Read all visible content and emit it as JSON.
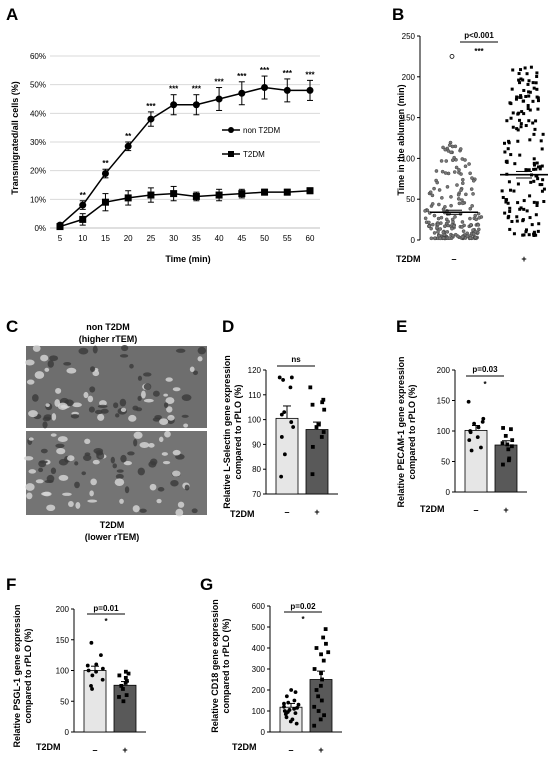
{
  "panels": {
    "a": {
      "letter": "A",
      "ylabel": "Transmigrated/all cells (%)",
      "xlabel": "Time (min)",
      "legend": [
        "non T2DM",
        "T2DM"
      ]
    },
    "b": {
      "letter": "B",
      "ylabel": "Time in the ablumen (min)",
      "pvalue": "p<0.001",
      "stars": "***",
      "group_label": "T2DM"
    },
    "c": {
      "letter": "C",
      "top_title_1": "non T2DM",
      "top_title_2": "(higher rTEM)",
      "bottom_title_1": "T2DM",
      "bottom_title_2": "(lower rTEM)"
    },
    "d": {
      "letter": "D",
      "ylabel_1": "Relative L-Selectin gene expression",
      "ylabel_2": "compared to rPLO (%)",
      "sig": "ns",
      "group_label": "T2DM"
    },
    "e": {
      "letter": "E",
      "ylabel_1": "Relative PECAM-1 gene expression",
      "ylabel_2": "compared to rPLO (%)",
      "pvalue": "p=0.03",
      "stars": "*",
      "group_label": "T2DM"
    },
    "f": {
      "letter": "F",
      "ylabel_1": "Relative PSGL-1 gene expression",
      "ylabel_2": "compared to rPLO (%)",
      "pvalue": "p=0.01",
      "stars": "*",
      "group_label": "T2DM"
    },
    "g": {
      "letter": "G",
      "ylabel_1": "Relative CD18 gene expression",
      "ylabel_2": "compared to rPLO (%)",
      "pvalue": "p=0.02",
      "stars": "*",
      "group_label": "T2DM"
    }
  },
  "chart_data": [
    {
      "panel": "A",
      "type": "line",
      "xlabel": "Time (min)",
      "ylabel": "Transmigrated/all cells (%)",
      "x": [
        5,
        10,
        15,
        20,
        25,
        30,
        35,
        40,
        45,
        50,
        55,
        60
      ],
      "xticks": [
        "5",
        "10",
        "15",
        "20",
        "25",
        "30",
        "35",
        "40",
        "45",
        "50",
        "55",
        "60"
      ],
      "yticks": [
        "0%",
        "10%",
        "20%",
        "30%",
        "40%",
        "50%",
        "60%"
      ],
      "ylim": [
        0,
        60
      ],
      "series": [
        {
          "name": "non T2DM",
          "marker": "circle",
          "values": [
            1,
            8,
            19,
            28.5,
            38,
            43,
            43,
            45,
            47,
            49,
            48,
            48
          ],
          "errors": [
            0.5,
            1.5,
            1.5,
            1.5,
            2.5,
            3.5,
            3.5,
            4,
            4,
            4,
            4,
            3.5
          ],
          "annotations": [
            "",
            "**",
            "**",
            "**",
            "***",
            "***",
            "***",
            "***",
            "***",
            "***",
            "***",
            "***"
          ]
        },
        {
          "name": "T2DM",
          "marker": "square",
          "values": [
            0.5,
            3,
            9,
            10.5,
            11.5,
            12,
            11,
            11.5,
            12,
            12.5,
            12.5,
            13
          ],
          "errors": [
            0.5,
            2,
            3,
            2.5,
            2.5,
            2.5,
            1.5,
            2,
            1.5,
            1,
            1,
            1
          ]
        }
      ]
    },
    {
      "panel": "B",
      "type": "scatter",
      "ylabel": "Time in the ablumen (min)",
      "categories": [
        "–",
        "+"
      ],
      "yticks": [
        "0",
        "50",
        "100",
        "150",
        "200",
        "250"
      ],
      "ylim": [
        0,
        250
      ],
      "means": [
        34,
        80
      ],
      "sems": [
        2.5,
        4
      ],
      "ranges": [
        [
          2,
          120
        ],
        [
          5,
          212
        ]
      ],
      "outlier": 225,
      "point_counts": [
        200,
        150
      ]
    },
    {
      "panel": "D",
      "type": "bar",
      "categories": [
        "–",
        "+"
      ],
      "yticks": [
        "70",
        "80",
        "90",
        "100",
        "110",
        "120"
      ],
      "ylim": [
        70,
        120
      ],
      "values": [
        100.5,
        96
      ],
      "errors": [
        5,
        3
      ],
      "points": [
        [
          117,
          117,
          116,
          113,
          103,
          102,
          99,
          97,
          93,
          86,
          77
        ],
        [
          113,
          108,
          107,
          106,
          104,
          98,
          97,
          95,
          93,
          89,
          78
        ]
      ]
    },
    {
      "panel": "E",
      "type": "bar",
      "categories": [
        "–",
        "+"
      ],
      "yticks": [
        "0",
        "50",
        "100",
        "150",
        "200"
      ],
      "ylim": [
        0,
        200
      ],
      "values": [
        101,
        77
      ],
      "errors": [
        8,
        7
      ],
      "points": [
        [
          148,
          120,
          115,
          112,
          106,
          100,
          98,
          90,
          85,
          73,
          68
        ],
        [
          105,
          103,
          92,
          85,
          80,
          78,
          75,
          70,
          55,
          52,
          45
        ]
      ]
    },
    {
      "panel": "F",
      "type": "bar",
      "categories": [
        "–",
        "+"
      ],
      "yticks": [
        "0",
        "50",
        "100",
        "150",
        "200"
      ],
      "ylim": [
        0,
        200
      ],
      "values": [
        100,
        76
      ],
      "errors": [
        7,
        6
      ],
      "points": [
        [
          145,
          125,
          110,
          108,
          103,
          100,
          98,
          92,
          85,
          75,
          70
        ],
        [
          98,
          95,
          92,
          88,
          83,
          80,
          75,
          70,
          60,
          57,
          50
        ]
      ]
    },
    {
      "panel": "G",
      "type": "bar",
      "categories": [
        "–",
        "+"
      ],
      "yticks": [
        "0",
        "100",
        "200",
        "300",
        "400",
        "500",
        "600"
      ],
      "ylim": [
        0,
        600
      ],
      "values": [
        118,
        250
      ],
      "errors": [
        18,
        40
      ],
      "points": [
        [
          200,
          190,
          170,
          150,
          140,
          135,
          130,
          120,
          115,
          110,
          105,
          100,
          95,
          90,
          85,
          70,
          60,
          50,
          40
        ],
        [
          490,
          450,
          420,
          400,
          380,
          370,
          340,
          300,
          280,
          250,
          220,
          200,
          170,
          150,
          120,
          100,
          80,
          60,
          30
        ]
      ]
    }
  ]
}
